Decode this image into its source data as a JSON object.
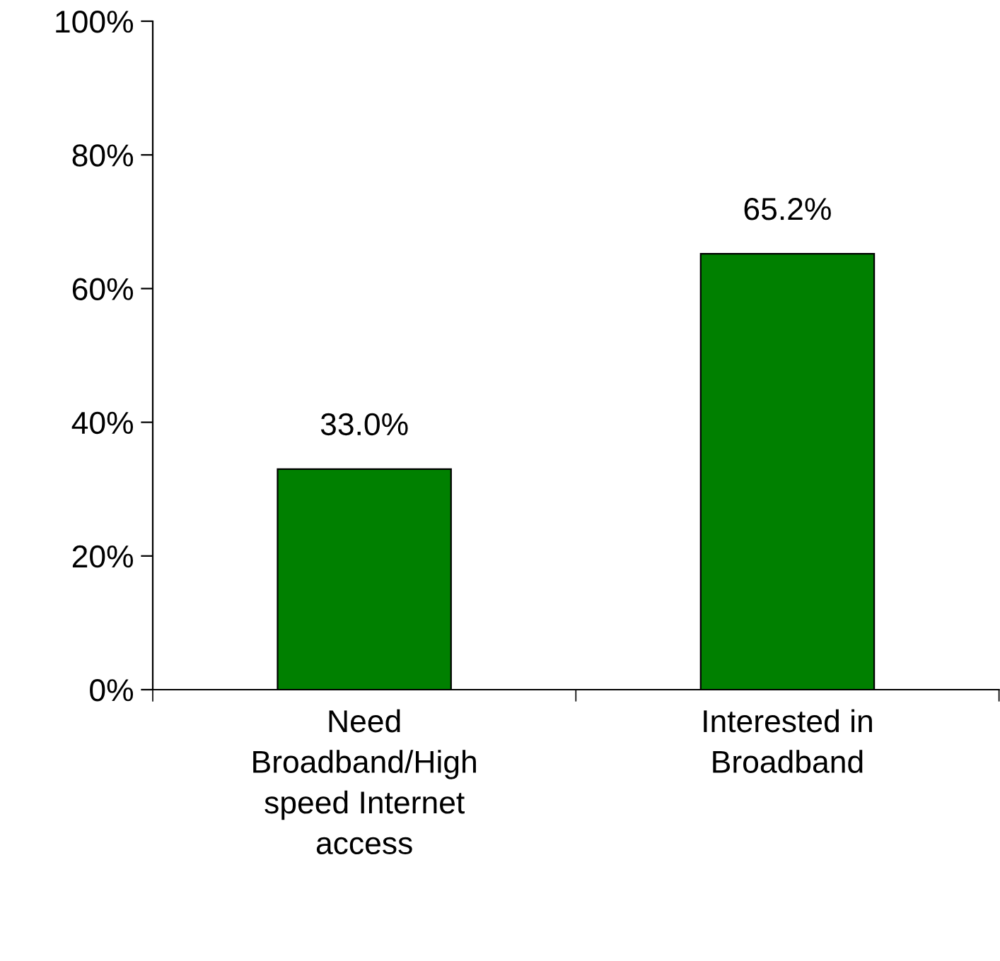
{
  "chart_data": {
    "type": "bar",
    "categories": [
      "Need\nBroadband/High\nspeed Internet\naccess",
      "Interested in\nBroadband"
    ],
    "values": [
      33.0,
      65.2
    ],
    "color": "#008000",
    "value_labels": [
      "33.0%",
      "65.2%"
    ],
    "ylim": [
      0,
      100
    ],
    "yticks": [
      {
        "value": 0,
        "label": "0%"
      },
      {
        "value": 20,
        "label": "20%"
      },
      {
        "value": 40,
        "label": "40%"
      },
      {
        "value": 60,
        "label": "60%"
      },
      {
        "value": 80,
        "label": "80%"
      },
      {
        "value": 100,
        "label": "100%"
      }
    ],
    "grid": false,
    "legend": false
  }
}
